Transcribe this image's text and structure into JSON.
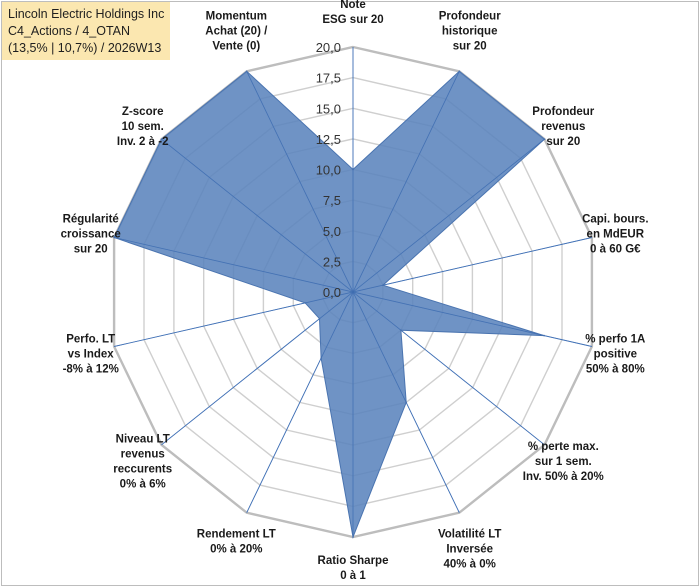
{
  "title": {
    "line1": "Lincoln Electric Holdings Inc",
    "line2": "C4_Actions / 4_OTAN",
    "line3": "(13,5% | 10,7%) / 2026W13"
  },
  "chart_data": {
    "type": "radar",
    "rmin": 0,
    "rmax": 20,
    "tick_step": 2.5,
    "tick_labels": [
      "0,0",
      "2,5",
      "5,0",
      "7,5",
      "10,0",
      "12,5",
      "15,0",
      "17,5",
      "20,0"
    ],
    "series": [
      {
        "name": "Lincoln Electric Holdings Inc",
        "color": "#5b84bd",
        "values": [
          10.0,
          20.0,
          20.0,
          2.5,
          16.0,
          5.0,
          10.0,
          20.0,
          6.0,
          3.5,
          4.0,
          20.0,
          20.0,
          20.0
        ]
      }
    ],
    "axes": [
      [
        "Note",
        "ESG sur 20"
      ],
      [
        "Profondeur",
        "historique",
        "sur 20"
      ],
      [
        "Profondeur",
        "revenus",
        "sur 20"
      ],
      [
        "Capi. bours.",
        "en MdEUR",
        "0 à 60 G€"
      ],
      [
        "% perfo 1A",
        "positive",
        "50% à 80%"
      ],
      [
        "% perte max.",
        "sur 1 sem.",
        "Inv. 50% à 20%"
      ],
      [
        "Volatilité LT",
        "Inversée",
        "40% à 0%"
      ],
      [
        "Ratio Sharpe",
        "0 à 1"
      ],
      [
        "Rendement LT",
        "0% à 20%"
      ],
      [
        "Niveau LT",
        "revenus",
        "reccurents",
        "0% à 6%"
      ],
      [
        "Perfo. LT",
        "vs Index",
        "-8% à 12%"
      ],
      [
        "Régularité",
        "croissance",
        "sur 20"
      ],
      [
        "Z-score",
        "10 sem.",
        "Inv. 2 à -2"
      ],
      [
        "Momentum",
        "Achat (20) /",
        "Vente (0)"
      ]
    ]
  }
}
